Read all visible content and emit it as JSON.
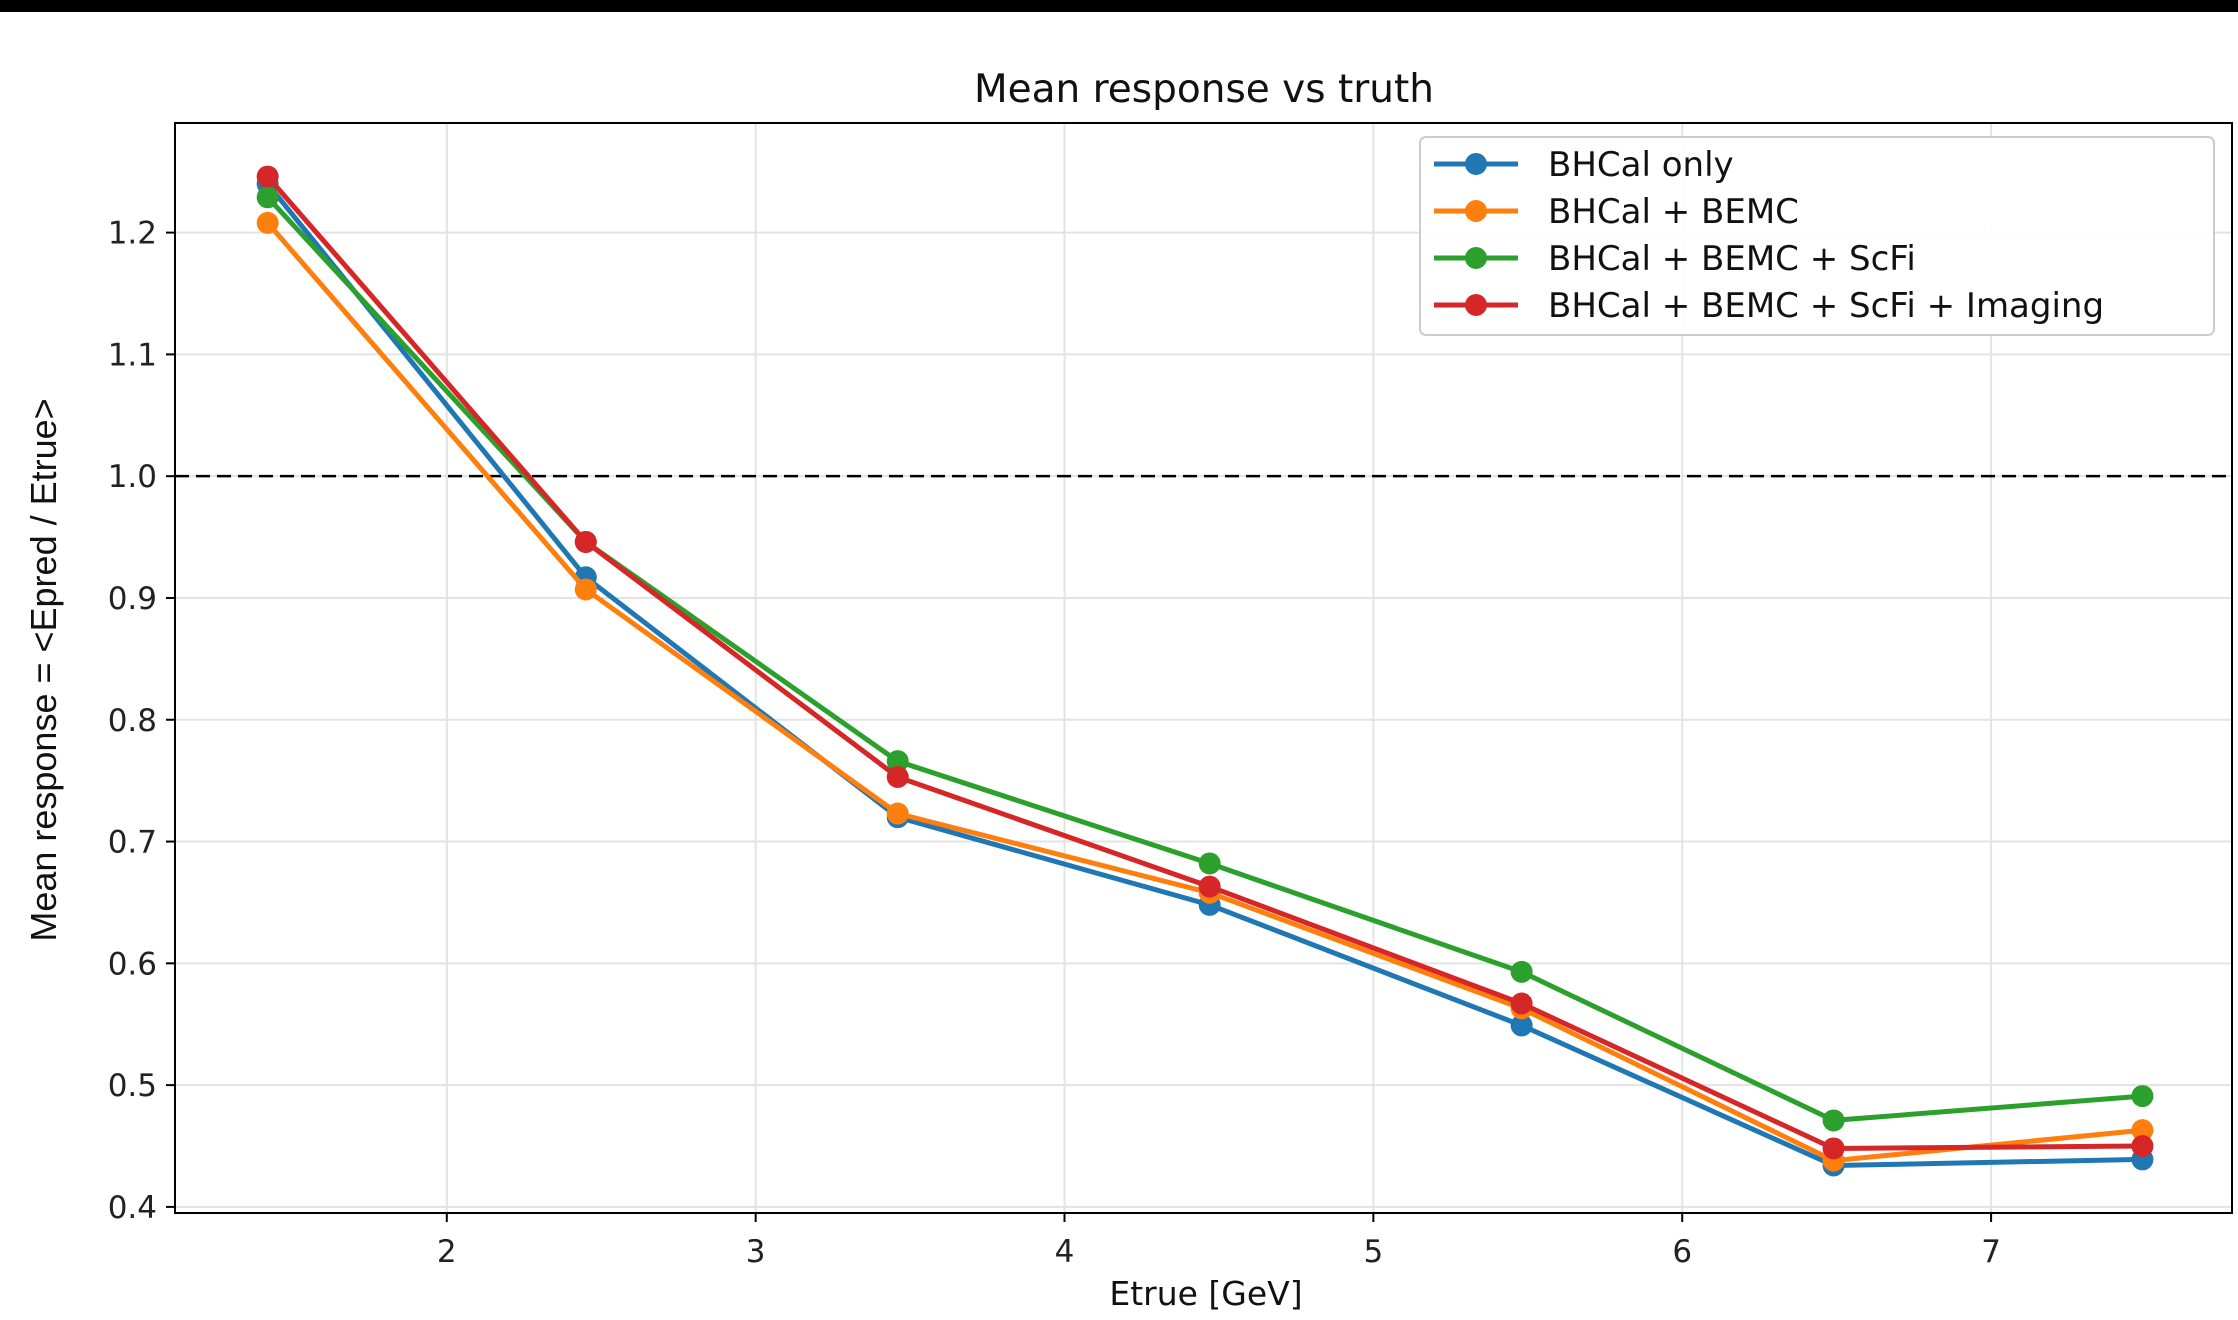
{
  "chart_data": {
    "type": "line",
    "title": "Mean response vs truth",
    "xlabel": "Etrue [GeV]",
    "ylabel": "Mean response = <Epred / Etrue>",
    "xlim": [
      1.12,
      7.78
    ],
    "ylim": [
      0.395,
      1.29
    ],
    "xticks": [
      "2",
      "3",
      "4",
      "5",
      "6",
      "7"
    ],
    "yticks": [
      "0.4",
      "0.5",
      "0.6",
      "0.7",
      "0.8",
      "0.9",
      "1.0",
      "1.1",
      "1.2"
    ],
    "grid": true,
    "legend_position": "top-right",
    "reference_line": {
      "y": 1.0,
      "style": "dashed",
      "color": "#000000"
    },
    "x": [
      1.42,
      2.45,
      3.46,
      4.47,
      5.48,
      6.49,
      7.49
    ],
    "series": [
      {
        "name": "BHCal only",
        "color": "#1f77b4",
        "values": [
          1.24,
          0.917,
          0.72,
          0.648,
          0.549,
          0.434,
          0.439
        ]
      },
      {
        "name": "BHCal + BEMC",
        "color": "#ff7f0e",
        "values": [
          1.208,
          0.907,
          0.723,
          0.658,
          0.563,
          0.438,
          0.463
        ]
      },
      {
        "name": "BHCal + BEMC + ScFi",
        "color": "#2ca02c",
        "values": [
          1.229,
          0.946,
          0.766,
          0.682,
          0.593,
          0.471,
          0.491
        ]
      },
      {
        "name": "BHCal + BEMC + ScFi + Imaging",
        "color": "#d62728",
        "values": [
          1.246,
          0.946,
          0.753,
          0.663,
          0.567,
          0.448,
          0.45
        ]
      }
    ]
  }
}
